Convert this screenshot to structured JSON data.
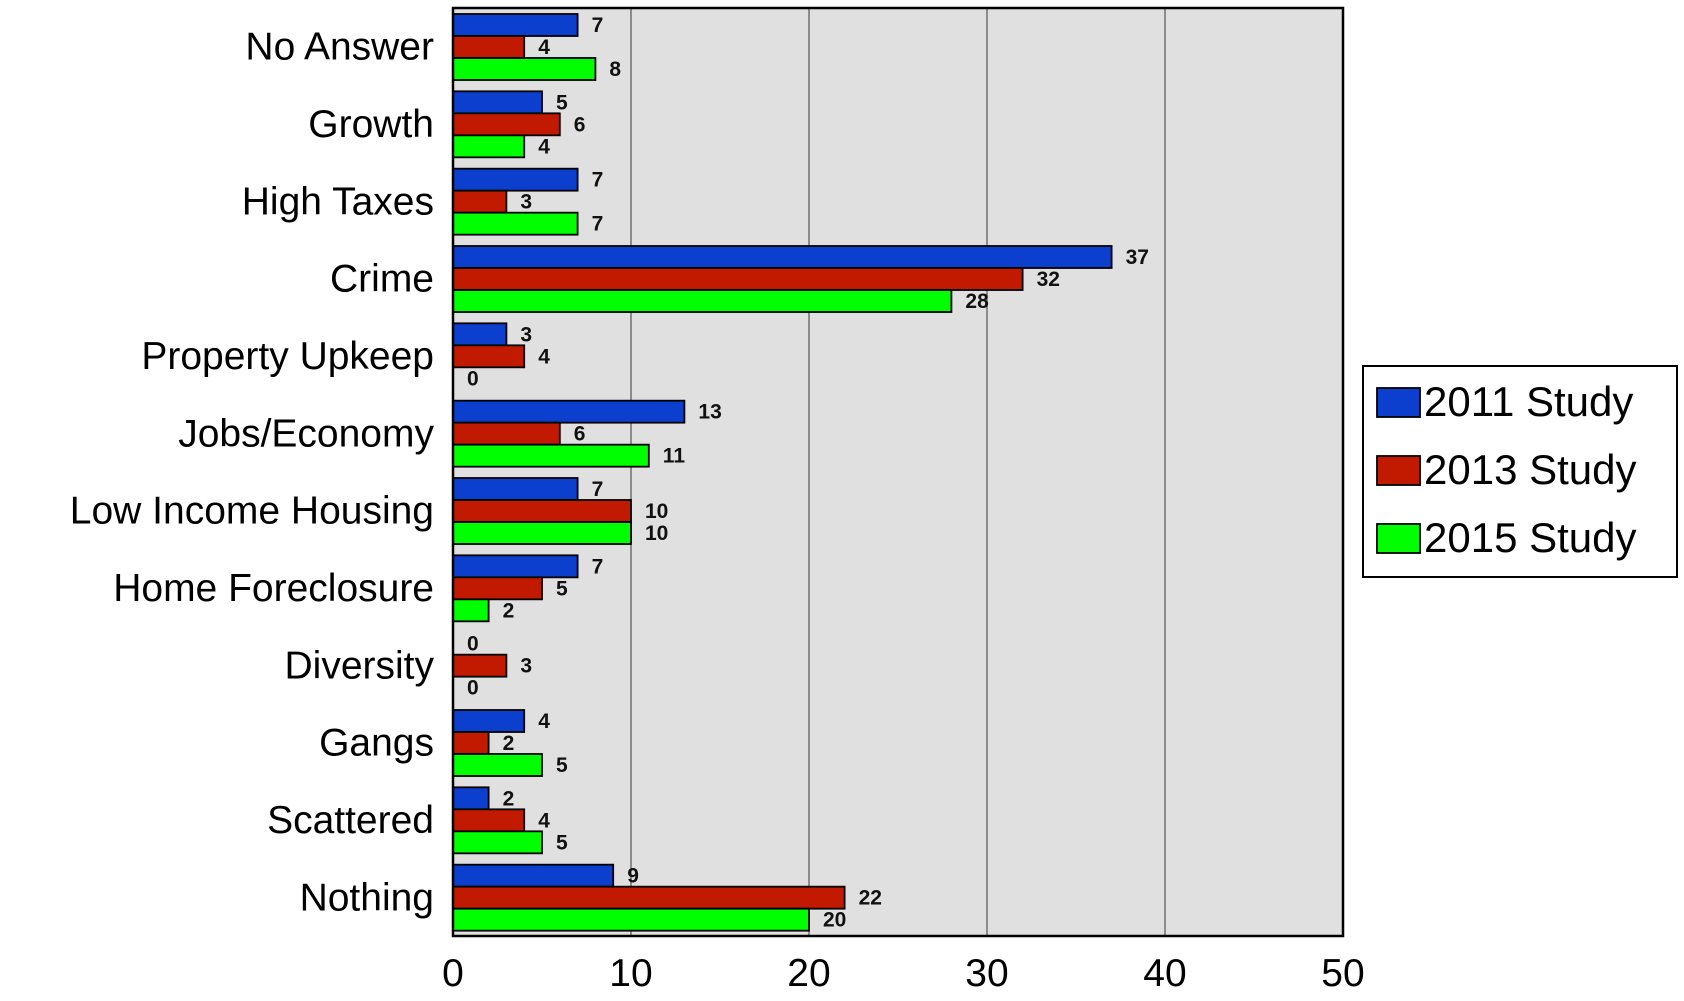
{
  "chart_data": {
    "type": "bar",
    "orientation": "horizontal",
    "categories": [
      "No Answer",
      "Growth",
      "High Taxes",
      "Crime",
      "Property Upkeep",
      "Jobs/Economy",
      "Low Income Housing",
      "Home Foreclosure",
      "Diversity",
      "Gangs",
      "Scattered",
      "Nothing"
    ],
    "series": [
      {
        "name": "2011 Study",
        "color": "#0c3fce",
        "values": [
          7,
          5,
          7,
          37,
          3,
          13,
          7,
          7,
          0,
          4,
          2,
          9
        ]
      },
      {
        "name": "2013 Study",
        "color": "#c21a00",
        "values": [
          4,
          6,
          3,
          32,
          4,
          6,
          10,
          5,
          3,
          2,
          4,
          22
        ]
      },
      {
        "name": "2015 Study",
        "color": "#00ff00",
        "values": [
          8,
          4,
          7,
          28,
          0,
          11,
          10,
          2,
          0,
          5,
          5,
          20
        ]
      }
    ],
    "x_ticks": [
      0,
      10,
      20,
      30,
      40,
      50
    ],
    "xlim": [
      0,
      50
    ],
    "title": "",
    "xlabel": "",
    "ylabel": "",
    "grid": "vertical",
    "legend_position": "right",
    "data_labels": true,
    "plot_background": "#e0e0e0"
  }
}
